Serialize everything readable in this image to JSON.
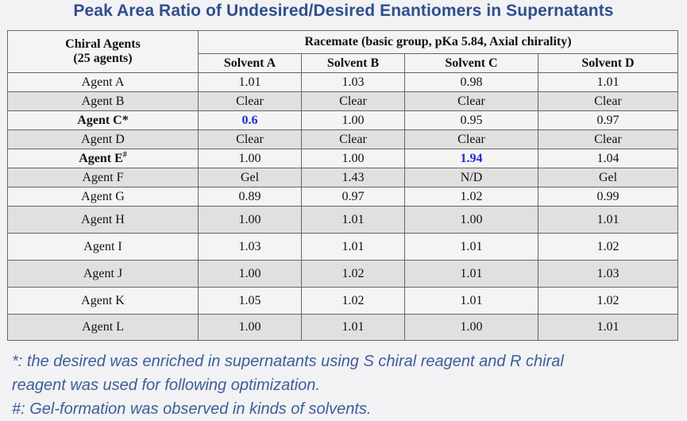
{
  "title": "Peak Area Ratio of Undesired/Desired Enantiomers in Supernatants",
  "table": {
    "agent_header_line1": "Chiral Agents",
    "agent_header_line2": "(25 agents)",
    "group_header": "Racemate (basic group, pKa 5.84, Axial chirality)",
    "solvents": [
      "Solvent A",
      "Solvent B",
      "Solvent C",
      "Solvent D"
    ],
    "rows": [
      {
        "agent": "Agent A",
        "values": [
          "1.01",
          "1.03",
          "0.98",
          "1.01"
        ]
      },
      {
        "agent": "Agent B",
        "values": [
          "Clear",
          "Clear",
          "Clear",
          "Clear"
        ]
      },
      {
        "agent": "Agent C*",
        "values": [
          "0.6",
          "1.00",
          "0.95",
          "0.97"
        ]
      },
      {
        "agent": "Agent D",
        "values": [
          "Clear",
          "Clear",
          "Clear",
          "Clear"
        ]
      },
      {
        "agent": "Agent E",
        "agent_sup": "#",
        "values": [
          "1.00",
          "1.00",
          "1.94",
          "1.04"
        ]
      },
      {
        "agent": "Agent F",
        "values": [
          "Gel",
          "1.43",
          "N/D",
          "Gel"
        ]
      },
      {
        "agent": "Agent G",
        "values": [
          "0.89",
          "0.97",
          "1.02",
          "0.99"
        ]
      },
      {
        "agent": "Agent H",
        "values": [
          "1.00",
          "1.01",
          "1.00",
          "1.01"
        ]
      },
      {
        "agent": "Agent I",
        "values": [
          "1.03",
          "1.01",
          "1.01",
          "1.02"
        ]
      },
      {
        "agent": "Agent J",
        "values": [
          "1.00",
          "1.02",
          "1.01",
          "1.03"
        ]
      },
      {
        "agent": "Agent K",
        "values": [
          "1.05",
          "1.02",
          "1.01",
          "1.02"
        ]
      },
      {
        "agent": "Agent L",
        "values": [
          "1.00",
          "1.01",
          "1.00",
          "1.01"
        ]
      }
    ],
    "highlight_color": "#1a2fcf"
  },
  "notes": [
    "*: the desired was enriched in supernatants using S chiral reagent and R chiral",
    "reagent was used for following optimization.",
    "#: Gel-formation was observed in kinds of solvents."
  ]
}
